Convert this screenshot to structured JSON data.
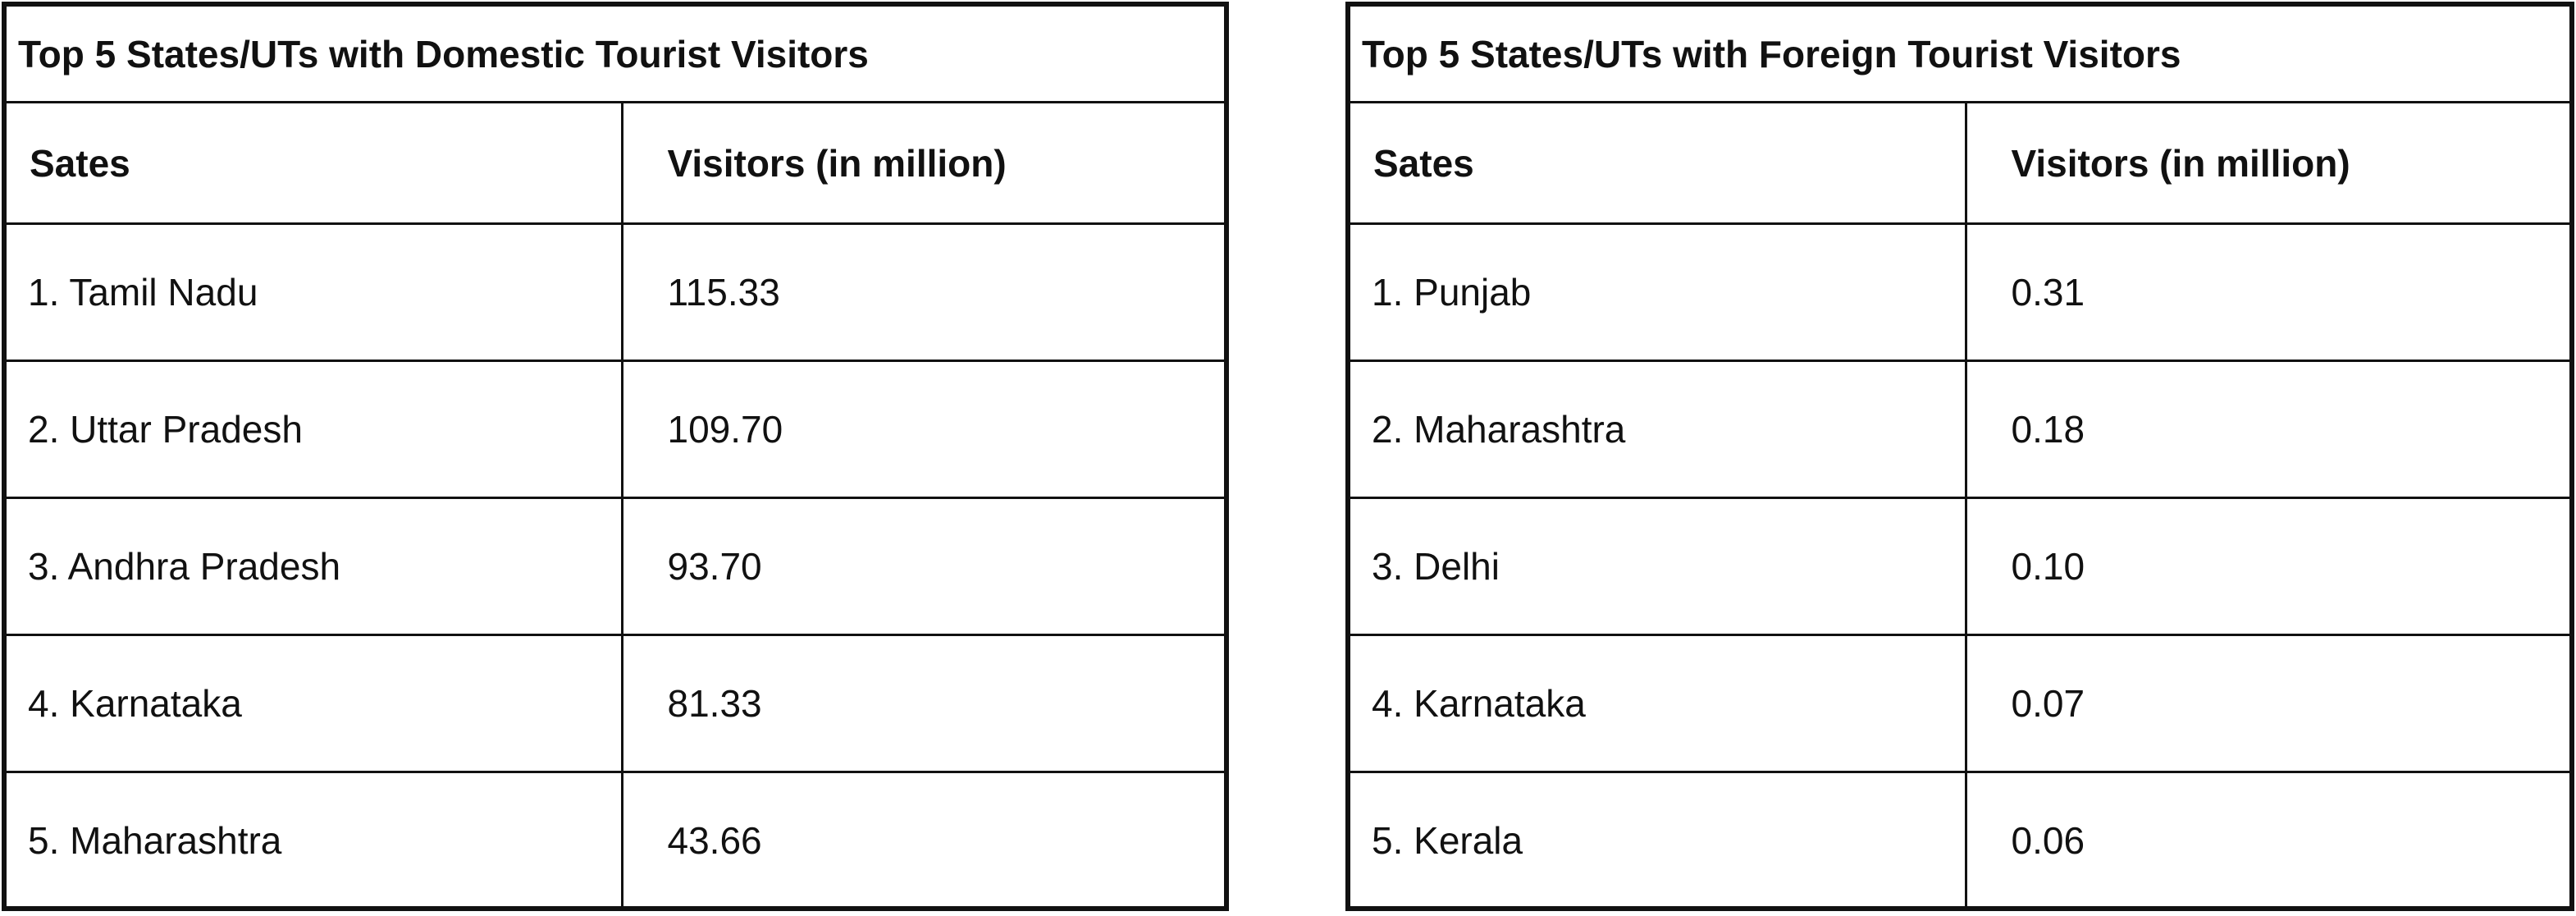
{
  "domestic": {
    "title": "Top 5 States/UTs with Domestic Tourist Visitors",
    "columns": [
      "Sates",
      "Visitors (in million)"
    ],
    "rows": [
      {
        "state": "1. Tamil Nadu",
        "visitors": "115.33"
      },
      {
        "state": "2. Uttar Pradesh",
        "visitors": "109.70"
      },
      {
        "state": "3. Andhra Pradesh",
        "visitors": "93.70"
      },
      {
        "state": "4. Karnataka",
        "visitors": "81.33"
      },
      {
        "state": "5. Maharashtra",
        "visitors": "43.66"
      }
    ]
  },
  "foreign": {
    "title": "Top 5 States/UTs with Foreign Tourist Visitors",
    "columns": [
      "Sates",
      "Visitors (in million)"
    ],
    "rows": [
      {
        "state": "1. Punjab",
        "visitors": "0.31"
      },
      {
        "state": "2. Maharashtra",
        "visitors": "0.18"
      },
      {
        "state": "3. Delhi",
        "visitors": "0.10"
      },
      {
        "state": "4. Karnataka",
        "visitors": "0.07"
      },
      {
        "state": "5. Kerala",
        "visitors": "0.06"
      }
    ]
  }
}
